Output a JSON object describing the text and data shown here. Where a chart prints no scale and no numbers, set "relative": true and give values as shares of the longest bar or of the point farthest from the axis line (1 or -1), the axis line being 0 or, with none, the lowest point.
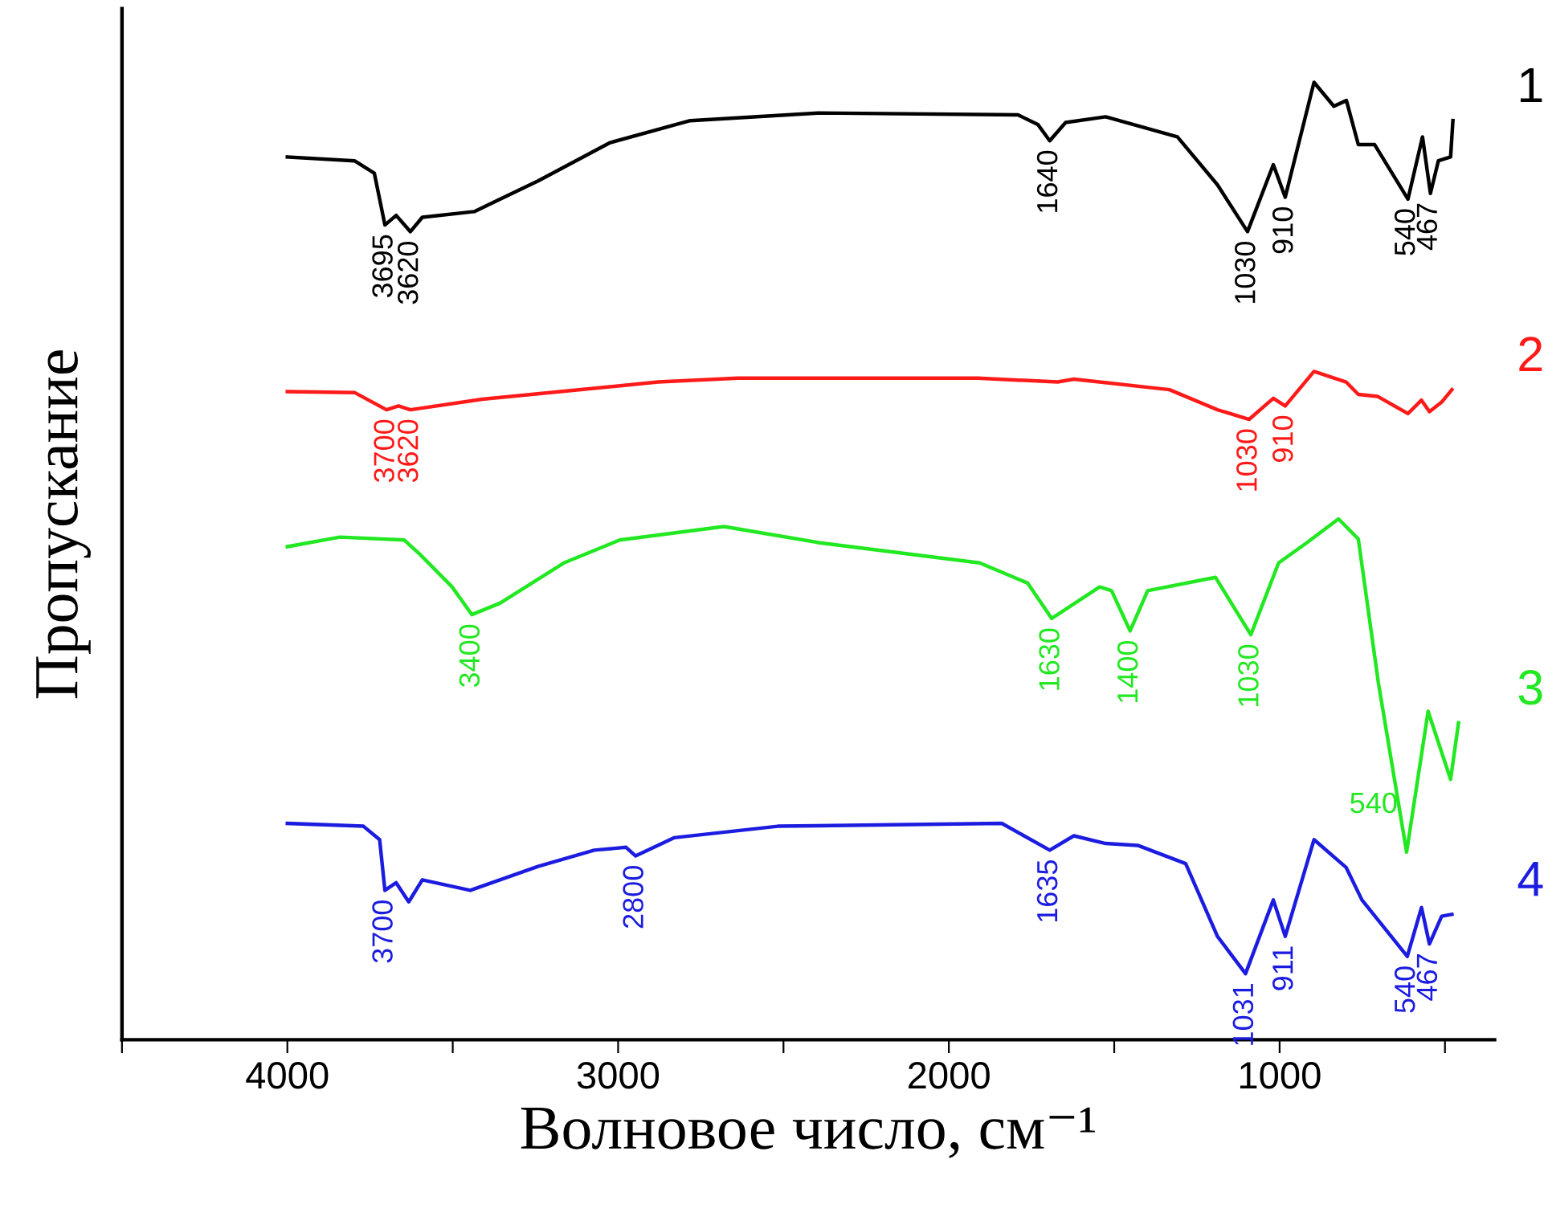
{
  "chart_data": {
    "type": "line",
    "relative": true,
    "xlabel": "Волновое число, см⁻¹",
    "ylabel": "Пропускание",
    "xlim": [
      4500,
      350
    ],
    "xticks": [
      {
        "value": 4500,
        "label": null
      },
      4000,
      {
        "value": 3500,
        "label": null
      },
      3000,
      {
        "value": 2500,
        "label": null
      },
      2000,
      {
        "value": 1500,
        "label": null
      },
      1000,
      {
        "value": 500,
        "label": null
      }
    ],
    "grid": false,
    "legend": false,
    "marker": "none",
    "line_style": "solid",
    "series": [
      {
        "name": "1",
        "color": "#000000",
        "x": [
          4000,
          3797,
          3737,
          3705,
          3671,
          3628,
          3592,
          3435,
          3242,
          3024,
          2782,
          2395,
          1791,
          1731,
          1695,
          1647,
          1526,
          1309,
          1188,
          1097,
          1019,
          983,
          896,
          836,
          798,
          762,
          713,
          612,
          568,
          544,
          520,
          483,
          476
        ],
        "values": [
          0.922,
          0.918,
          0.905,
          0.851,
          0.861,
          0.844,
          0.859,
          0.865,
          0.897,
          0.937,
          0.96,
          0.968,
          0.966,
          0.956,
          0.939,
          0.958,
          0.964,
          0.943,
          0.893,
          0.844,
          0.914,
          0.88,
          1.0,
          0.975,
          0.981,
          0.935,
          0.935,
          0.878,
          0.943,
          0.884,
          0.918,
          0.922,
          0.96
        ]
      },
      {
        "name": "2",
        "color": "#ff1a1a",
        "x": [
          4000,
          3797,
          3700,
          3664,
          3628,
          3411,
          2879,
          2638,
          1913,
          1671,
          1622,
          1333,
          1188,
          1092,
          1019,
          983,
          896,
          799,
          762,
          704,
          612,
          571,
          547,
          510,
          479
        ],
        "values": [
          0.677,
          0.676,
          0.658,
          0.662,
          0.658,
          0.669,
          0.687,
          0.691,
          0.691,
          0.687,
          0.69,
          0.679,
          0.658,
          0.648,
          0.67,
          0.662,
          0.698,
          0.687,
          0.674,
          0.672,
          0.654,
          0.668,
          0.656,
          0.666,
          0.679
        ]
      },
      {
        "name": "3",
        "color": "#22e822",
        "x": [
          4000,
          3841,
          3647,
          3599,
          3502,
          3442,
          3357,
          3164,
          2995,
          2680,
          2390,
          1907,
          1762,
          1689,
          1544,
          1508,
          1452,
          1399,
          1194,
          1087,
          1003,
          918,
          822,
          762,
          701,
          616,
          551,
          483,
          459
        ],
        "values": [
          0.515,
          0.525,
          0.522,
          0.507,
          0.473,
          0.444,
          0.456,
          0.498,
          0.522,
          0.536,
          0.519,
          0.498,
          0.477,
          0.44,
          0.473,
          0.469,
          0.427,
          0.469,
          0.483,
          0.423,
          0.498,
          0.519,
          0.544,
          0.523,
          0.372,
          0.196,
          0.343,
          0.272,
          0.331
        ]
      },
      {
        "name": "4",
        "color": "#1c1ce0",
        "x": [
          4000,
          3770,
          3721,
          3705,
          3671,
          3633,
          3592,
          3447,
          3242,
          3072,
          2976,
          2947,
          2831,
          2517,
          1840,
          1695,
          1622,
          1526,
          1429,
          1284,
          1188,
          1103,
          1019,
          983,
          896,
          799,
          751,
          614,
          571,
          547,
          510,
          479
        ],
        "values": [
          0.226,
          0.223,
          0.209,
          0.156,
          0.164,
          0.144,
          0.167,
          0.156,
          0.181,
          0.198,
          0.201,
          0.192,
          0.211,
          0.223,
          0.226,
          0.198,
          0.213,
          0.205,
          0.203,
          0.184,
          0.108,
          0.069,
          0.146,
          0.108,
          0.209,
          0.18,
          0.146,
          0.087,
          0.138,
          0.1,
          0.129,
          0.131
        ]
      }
    ],
    "annotations": [
      {
        "text": "3695",
        "x": 3705,
        "y": 0.851
      },
      {
        "text": "3620",
        "x": 3628,
        "y": 0.844
      },
      {
        "text": "1640",
        "x": 1695,
        "y": 0.939
      },
      {
        "text": "1030",
        "x": 1097,
        "y": 0.844
      },
      {
        "text": "910",
        "x": 983,
        "y": 0.88
      },
      {
        "text": "540",
        "x": 614,
        "y": 0.878
      },
      {
        "text": "467",
        "x": 547,
        "y": 0.884
      },
      {
        "text": "3700",
        "x": 3700,
        "y": 0.658
      },
      {
        "text": "3620",
        "x": 3628,
        "y": 0.658
      },
      {
        "text": "1030",
        "x": 1092,
        "y": 0.648
      },
      {
        "text": "910",
        "x": 983,
        "y": 0.662
      },
      {
        "text": "3400",
        "x": 3442,
        "y": 0.444
      },
      {
        "text": "1630",
        "x": 1689,
        "y": 0.44
      },
      {
        "text": "1400",
        "x": 1452,
        "y": 0.427
      },
      {
        "text": "1030",
        "x": 1087,
        "y": 0.423
      },
      {
        "text": "540",
        "x": 616,
        "y": 0.226
      },
      {
        "text": "3700",
        "x": 3705,
        "y": 0.156
      },
      {
        "text": "2800",
        "x": 2947,
        "y": 0.192
      },
      {
        "text": "1635",
        "x": 1695,
        "y": 0.198
      },
      {
        "text": "1031",
        "x": 1103,
        "y": 0.069
      },
      {
        "text": "911",
        "x": 983,
        "y": 0.108
      },
      {
        "text": "540",
        "x": 614,
        "y": 0.087
      },
      {
        "text": "467",
        "x": 547,
        "y": 0.1
      }
    ]
  }
}
